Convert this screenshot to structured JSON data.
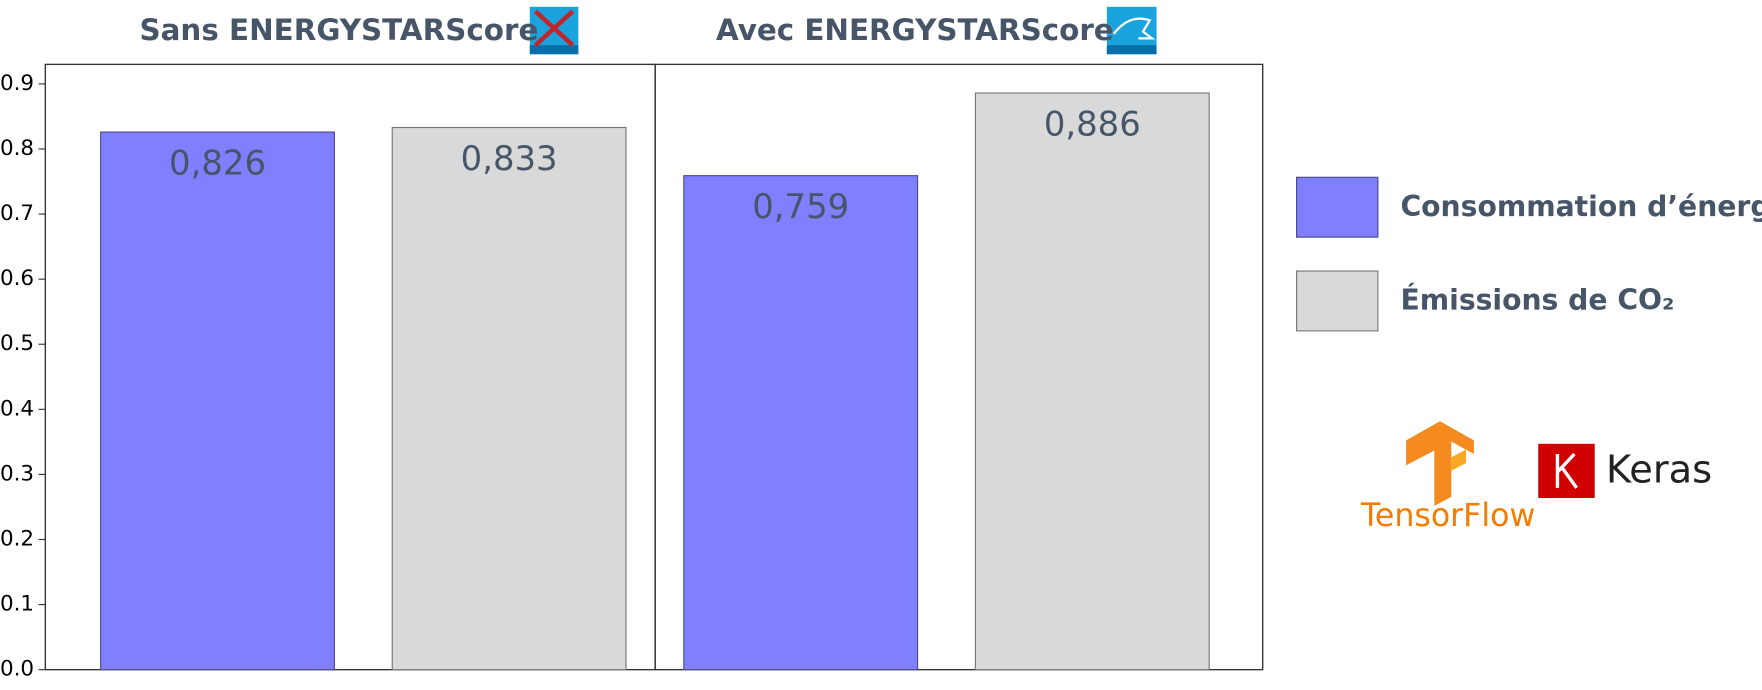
{
  "chart_data": [
    {
      "type": "bar",
      "title": "Sans ENERGYSTARScore",
      "series": [
        {
          "name": "Consommation d’énergie",
          "color": "#8080ff",
          "values": [
            0.826
          ],
          "value_labels": [
            "0,826"
          ]
        },
        {
          "name": "Émissions de CO₂",
          "color": "#d9d9d9",
          "values": [
            0.833
          ],
          "value_labels": [
            "0,833"
          ]
        }
      ],
      "ylim": [
        0,
        0.93
      ],
      "yticks": [
        {
          "value": 0,
          "label": "0.0"
        },
        0.1,
        0.2,
        0.3,
        0.4,
        0.5,
        0.6,
        0.7,
        0.8,
        0.9
      ]
    },
    {
      "type": "bar",
      "title": "Avec ENERGYSTARScore",
      "series": [
        {
          "color": "#8080ff",
          "values": [
            0.759
          ],
          "value_labels": [
            "0,759"
          ]
        },
        {
          "color": "#d9d9d9",
          "values": [
            0.886
          ],
          "value_labels": [
            "0,886"
          ]
        }
      ],
      "ylim": [
        0,
        0.93
      ]
    }
  ],
  "logos": [
    "TensorFlow",
    "Keras"
  ]
}
